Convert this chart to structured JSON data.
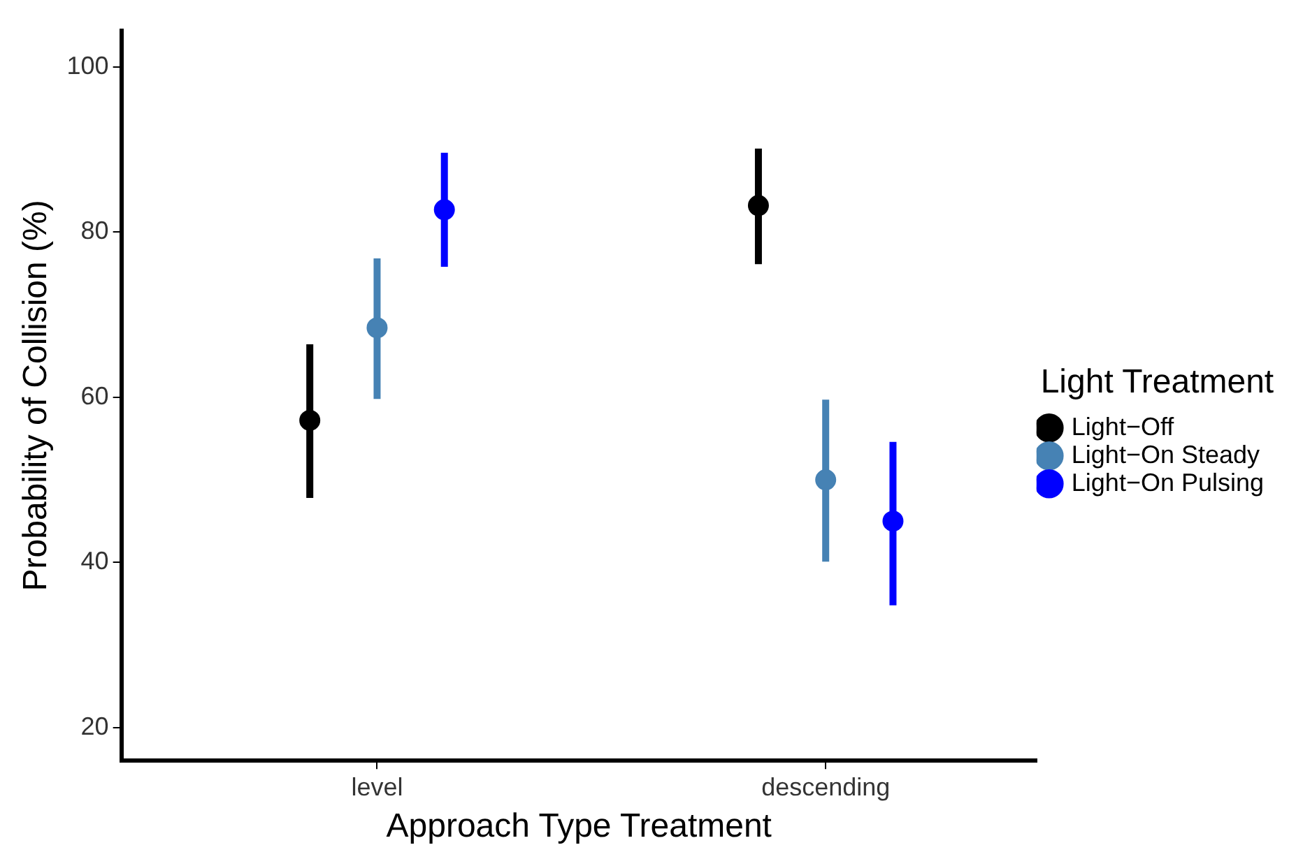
{
  "chart_data": {
    "type": "scatter",
    "xlabel": "Approach Type Treatment",
    "ylabel": "Probability of Collision (%)",
    "legend_title": "Light Treatment",
    "categories": [
      "level",
      "descending"
    ],
    "series": [
      {
        "name": "Light−Off",
        "color": "#000000",
        "values": [
          57.2,
          83.2
        ],
        "errors": [
          [
            47.8,
            66.4
          ],
          [
            76.1,
            90.1
          ]
        ]
      },
      {
        "name": "Light−On Steady",
        "color": "#4682b4",
        "values": [
          68.4,
          50.0
        ],
        "errors": [
          [
            59.8,
            76.8
          ],
          [
            40.1,
            59.7
          ]
        ]
      },
      {
        "name": "Light−On Pulsing",
        "color": "#0000ff",
        "values": [
          82.7,
          45.0
        ],
        "errors": [
          [
            75.8,
            89.6
          ],
          [
            34.8,
            54.6
          ]
        ]
      }
    ],
    "ylim": [
      16,
      104.4
    ],
    "yticks": [
      20,
      40,
      60,
      80,
      100
    ],
    "grid": false,
    "legend": "right",
    "marker": "circle"
  }
}
